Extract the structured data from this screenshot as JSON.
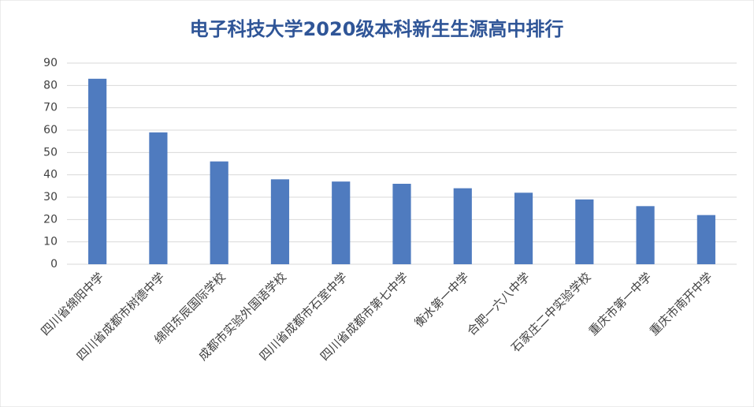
{
  "chart_data": {
    "type": "bar",
    "title": "电子科技大学2020级本科新生生源高中排行",
    "categories": [
      "四川省绵阳中学",
      "四川省成都市树德中学",
      "绵阳东辰国际学校",
      "成都市实验外国语学校",
      "四川省成都市石室中学",
      "四川省成都市第七中学",
      "衡水第一中学",
      "合肥一六八中学",
      "石家庄二中实验学校",
      "重庆市第一中学",
      "重庆市南开中学"
    ],
    "values": [
      83,
      59,
      46,
      38,
      37,
      36,
      34,
      32,
      29,
      26,
      22
    ],
    "color": "#4f7bbf",
    "ylim": [
      0,
      90
    ],
    "yticks": [
      0,
      10,
      20,
      30,
      40,
      50,
      60,
      70,
      80,
      90
    ],
    "grid": true
  }
}
